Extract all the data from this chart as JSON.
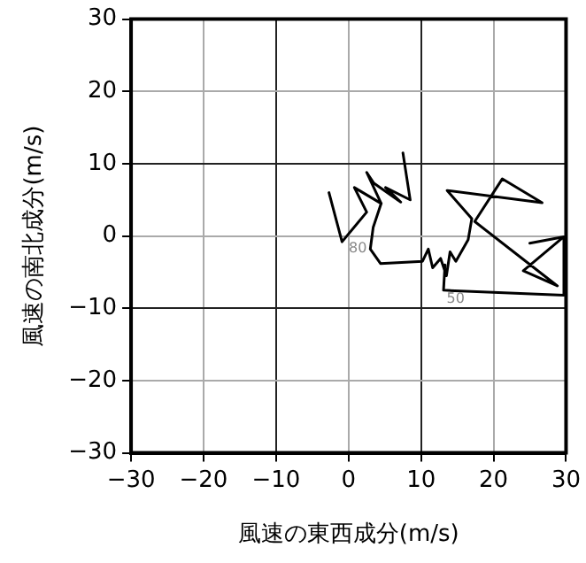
{
  "chart_data": {
    "type": "line",
    "xlabel": "風速の東西成分(m/s)",
    "ylabel": "風速の南北成分(m/s)",
    "xlim": [
      -30,
      30
    ],
    "ylim": [
      -30,
      30
    ],
    "xticks": [
      -30,
      -20,
      -10,
      0,
      10,
      20,
      30
    ],
    "yticks": [
      -30,
      -20,
      -10,
      0,
      10,
      20,
      30
    ],
    "grid": true,
    "legend": false,
    "marker": "none",
    "line_style": "solid",
    "series": [
      {
        "color": "#000000",
        "x": [
          7.5,
          8.5,
          5.1,
          7.2,
          3.5,
          2.5,
          4.5,
          0.8,
          2.5,
          -0.9,
          -2.7
        ],
        "values": [
          11.5,
          5.0,
          6.7,
          4.7,
          7.3,
          8.8,
          4.5,
          6.7,
          3.3,
          -0.8,
          6.0
        ]
      },
      {
        "color": "#000000",
        "x": [
          4.5,
          3.4,
          3.0,
          4.4,
          10.2,
          11.0,
          11.6,
          12.7,
          13.5,
          14.0,
          14.8,
          16.5,
          17.0,
          13.6,
          26.7,
          21.2,
          17.4,
          28.8,
          24.1,
          29.7,
          25.0,
          29.7,
          29.7,
          13.1,
          13.3
        ],
        "values": [
          4.5,
          1.2,
          -1.8,
          -3.8,
          -3.5,
          -1.8,
          -4.4,
          -3.1,
          -5.5,
          -2.2,
          -3.5,
          -0.5,
          2.4,
          6.3,
          4.6,
          7.9,
          2.0,
          -6.9,
          -4.8,
          -0.1,
          -1.0,
          -0.1,
          -8.2,
          -7.5,
          -4.0
        ]
      }
    ],
    "annotations": [
      {
        "text": "50",
        "x": 16.5,
        "y": -8.7
      },
      {
        "text": "80",
        "x": 3.0,
        "y": -1.8
      }
    ]
  }
}
